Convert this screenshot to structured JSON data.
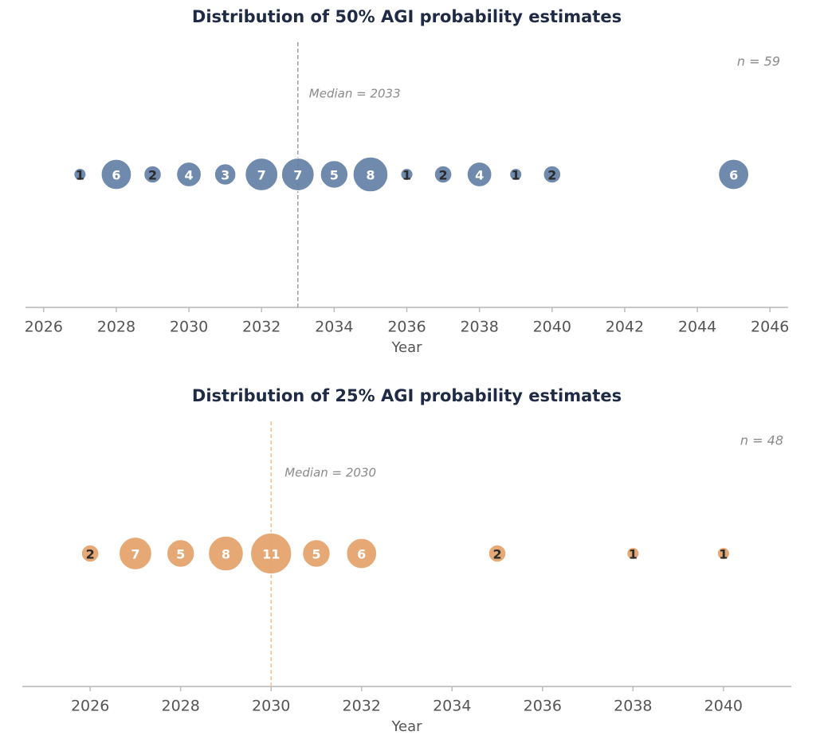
{
  "chart_data": [
    {
      "type": "scatter",
      "subtype": "bubble-count",
      "title": "Distribution of 50% AGI probability estimates",
      "xlabel": "Year",
      "ylabel": "",
      "xlim": [
        2025.5,
        2046.5
      ],
      "xticks": [
        2026,
        2028,
        2030,
        2032,
        2034,
        2036,
        2038,
        2040,
        2042,
        2044,
        2046
      ],
      "tick_labels": [
        "2026",
        "2028",
        "2030",
        "2032",
        "2034",
        "2036",
        "2038",
        "2040",
        "2042",
        "2044",
        "2046"
      ],
      "color": "#5f7da3",
      "label_light": "#ffffff",
      "label_dark": "#2b2b2b",
      "median": 2033,
      "median_label": "Median = 2033",
      "median_color": "#8e9aa6",
      "n_label": "n = 59",
      "points": [
        {
          "x": 2027,
          "count": 1,
          "label": "1"
        },
        {
          "x": 2028,
          "count": 6,
          "label": "6"
        },
        {
          "x": 2029,
          "count": 2,
          "label": "2"
        },
        {
          "x": 2030,
          "count": 4,
          "label": "4"
        },
        {
          "x": 2031,
          "count": 3,
          "label": "3"
        },
        {
          "x": 2032,
          "count": 7,
          "label": "7"
        },
        {
          "x": 2033,
          "count": 7,
          "label": "7"
        },
        {
          "x": 2034,
          "count": 5,
          "label": "5"
        },
        {
          "x": 2035,
          "count": 8,
          "label": "8"
        },
        {
          "x": 2036,
          "count": 1,
          "label": "1"
        },
        {
          "x": 2037,
          "count": 2,
          "label": "2"
        },
        {
          "x": 2038,
          "count": 4,
          "label": "4"
        },
        {
          "x": 2039,
          "count": 1,
          "label": "1"
        },
        {
          "x": 2040,
          "count": 2,
          "label": "2"
        },
        {
          "x": 2045,
          "count": 6,
          "label": "6"
        }
      ]
    },
    {
      "type": "scatter",
      "subtype": "bubble-count",
      "title": "Distribution of 25% AGI probability estimates",
      "xlabel": "Year",
      "ylabel": "",
      "xlim": [
        2024.5,
        2041.5
      ],
      "xticks": [
        2026,
        2028,
        2030,
        2032,
        2034,
        2036,
        2038,
        2040
      ],
      "tick_labels": [
        "2026",
        "2028",
        "2030",
        "2032",
        "2034",
        "2036",
        "2038",
        "2040"
      ],
      "color": "#e3a066",
      "label_light": "#ffffff",
      "label_dark": "#2b2b2b",
      "median": 2030,
      "median_label": "Median = 2030",
      "median_color": "#efbf90",
      "n_label": "n = 48",
      "points": [
        {
          "x": 2026,
          "count": 2,
          "label": "2"
        },
        {
          "x": 2027,
          "count": 7,
          "label": "7"
        },
        {
          "x": 2028,
          "count": 5,
          "label": "5"
        },
        {
          "x": 2029,
          "count": 8,
          "label": "8"
        },
        {
          "x": 2030,
          "count": 11,
          "label": "11"
        },
        {
          "x": 2031,
          "count": 5,
          "label": "5"
        },
        {
          "x": 2032,
          "count": 6,
          "label": "6"
        },
        {
          "x": 2035,
          "count": 2,
          "label": "2"
        },
        {
          "x": 2038,
          "count": 1,
          "label": "1"
        },
        {
          "x": 2040,
          "count": 1,
          "label": "1"
        }
      ]
    }
  ]
}
